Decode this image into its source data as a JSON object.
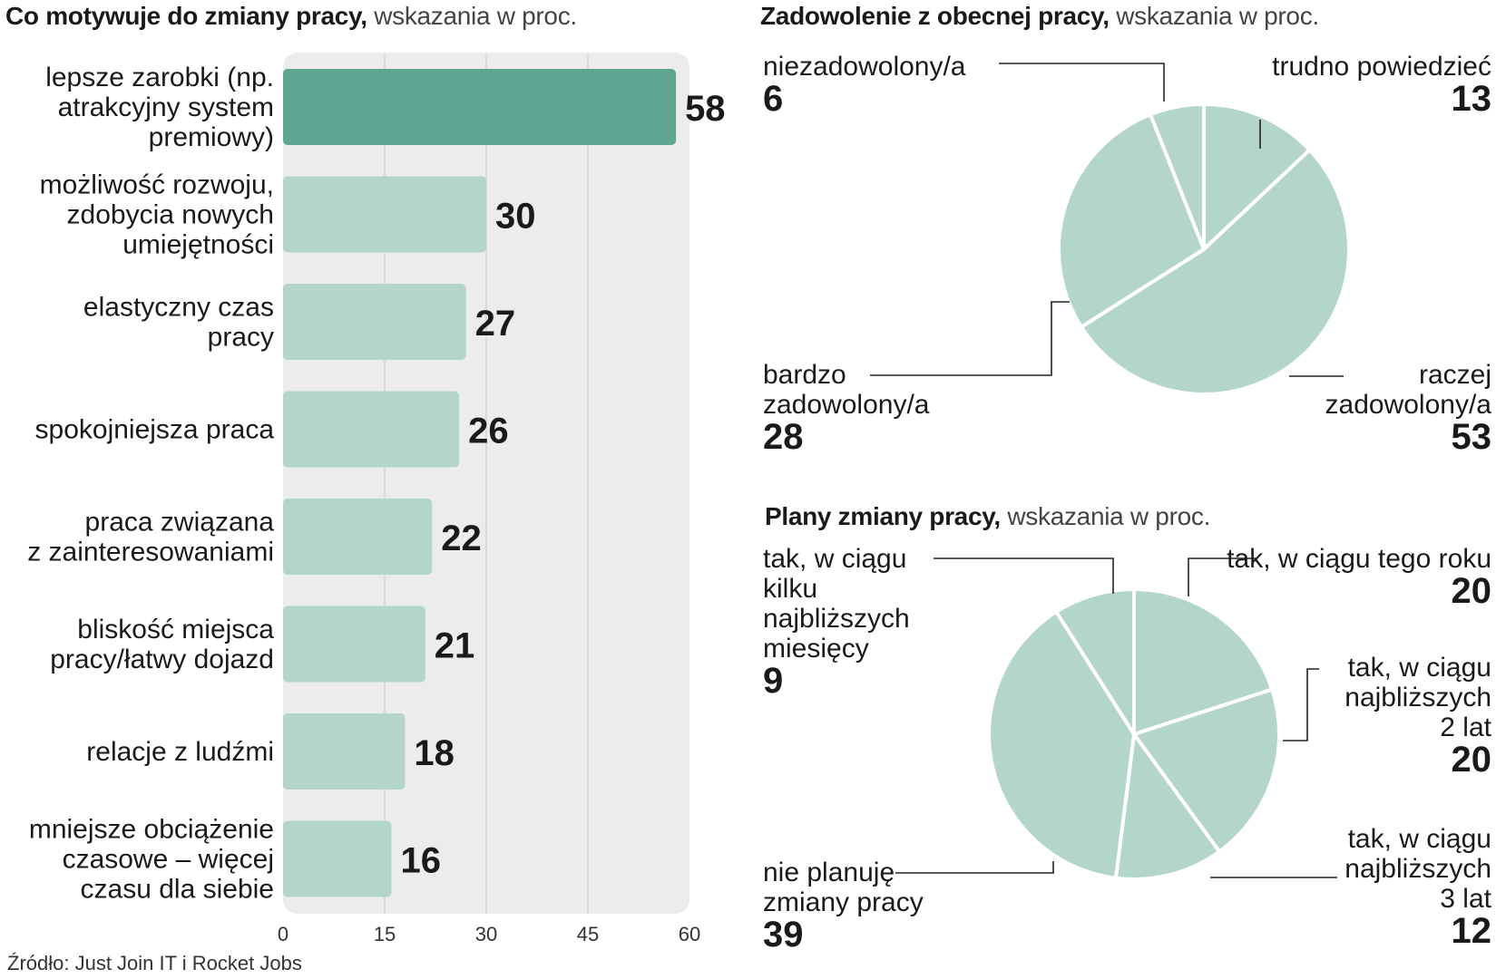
{
  "source": "Źródło: Just Join IT i Rocket Jobs",
  "colors": {
    "bar_highlight": "#5ea692",
    "bar_light": "#b3d5ca",
    "pie_fill": "#b3d5ca",
    "panel_bg": "#ececec",
    "text": "#1a1a1a"
  },
  "chart_data": [
    {
      "type": "bar",
      "orientation": "horizontal",
      "title_bold": "Co motywuje do zmiany pracy,",
      "title_rest": " wskazania w proc.",
      "categories": [
        [
          "lepsze zarobki (np.",
          "atrakcyjny system",
          "premiowy)"
        ],
        [
          "możliwość rozwoju,",
          "zdobycia nowych",
          "umiejętności"
        ],
        [
          "elastyczny czas",
          "pracy"
        ],
        [
          "spokojniejsza praca"
        ],
        [
          "praca związana",
          "z  zainteresowaniami"
        ],
        [
          "bliskość miejsca",
          "pracy/łatwy dojazd"
        ],
        [
          "relacje z ludźmi"
        ],
        [
          "mniejsze obciążenie",
          "czasowe – więcej",
          "czasu dla siebie"
        ]
      ],
      "values": [
        58,
        30,
        27,
        26,
        22,
        21,
        18,
        16
      ],
      "value_labels": [
        "58",
        "30",
        "27",
        "26",
        "22",
        "21",
        "18",
        "16"
      ],
      "highlight_index": 0,
      "xlim": [
        0,
        60
      ],
      "xticks": [
        0,
        15,
        30,
        45,
        60
      ],
      "xtick_labels": [
        "0",
        "15",
        "30",
        "45",
        "60"
      ],
      "grid": true
    },
    {
      "type": "pie",
      "title_bold": "Zadowolenie z obecnej pracy,",
      "title_rest": " wskazania w proc.",
      "slices": [
        {
          "label": [
            "trudno powiedzieć"
          ],
          "value": 13,
          "value_label": "13"
        },
        {
          "label": [
            "raczej",
            "zadowolony/a"
          ],
          "value": 53,
          "value_label": "53"
        },
        {
          "label": [
            "bardzo",
            "zadowolony/a"
          ],
          "value": 28,
          "value_label": "28"
        },
        {
          "label": [
            "niezadowolony/a"
          ],
          "value": 6,
          "value_label": "6"
        }
      ]
    },
    {
      "type": "pie",
      "title_bold": "Plany zmiany pracy,",
      "title_rest": " wskazania w proc.",
      "slices": [
        {
          "label": [
            "tak, w ciągu tego roku"
          ],
          "value": 20,
          "value_label": "20"
        },
        {
          "label": [
            "tak, w ciągu",
            "najbliższych",
            "2 lat"
          ],
          "value": 20,
          "value_label": "20"
        },
        {
          "label": [
            "tak, w ciągu",
            "najbliższych",
            "3 lat"
          ],
          "value": 12,
          "value_label": "12"
        },
        {
          "label": [
            "nie planuję",
            "zmiany pracy"
          ],
          "value": 39,
          "value_label": "39"
        },
        {
          "label": [
            "tak, w ciągu",
            "kilku",
            "najbliższych",
            "miesięcy"
          ],
          "value": 9,
          "value_label": "9"
        }
      ]
    }
  ]
}
